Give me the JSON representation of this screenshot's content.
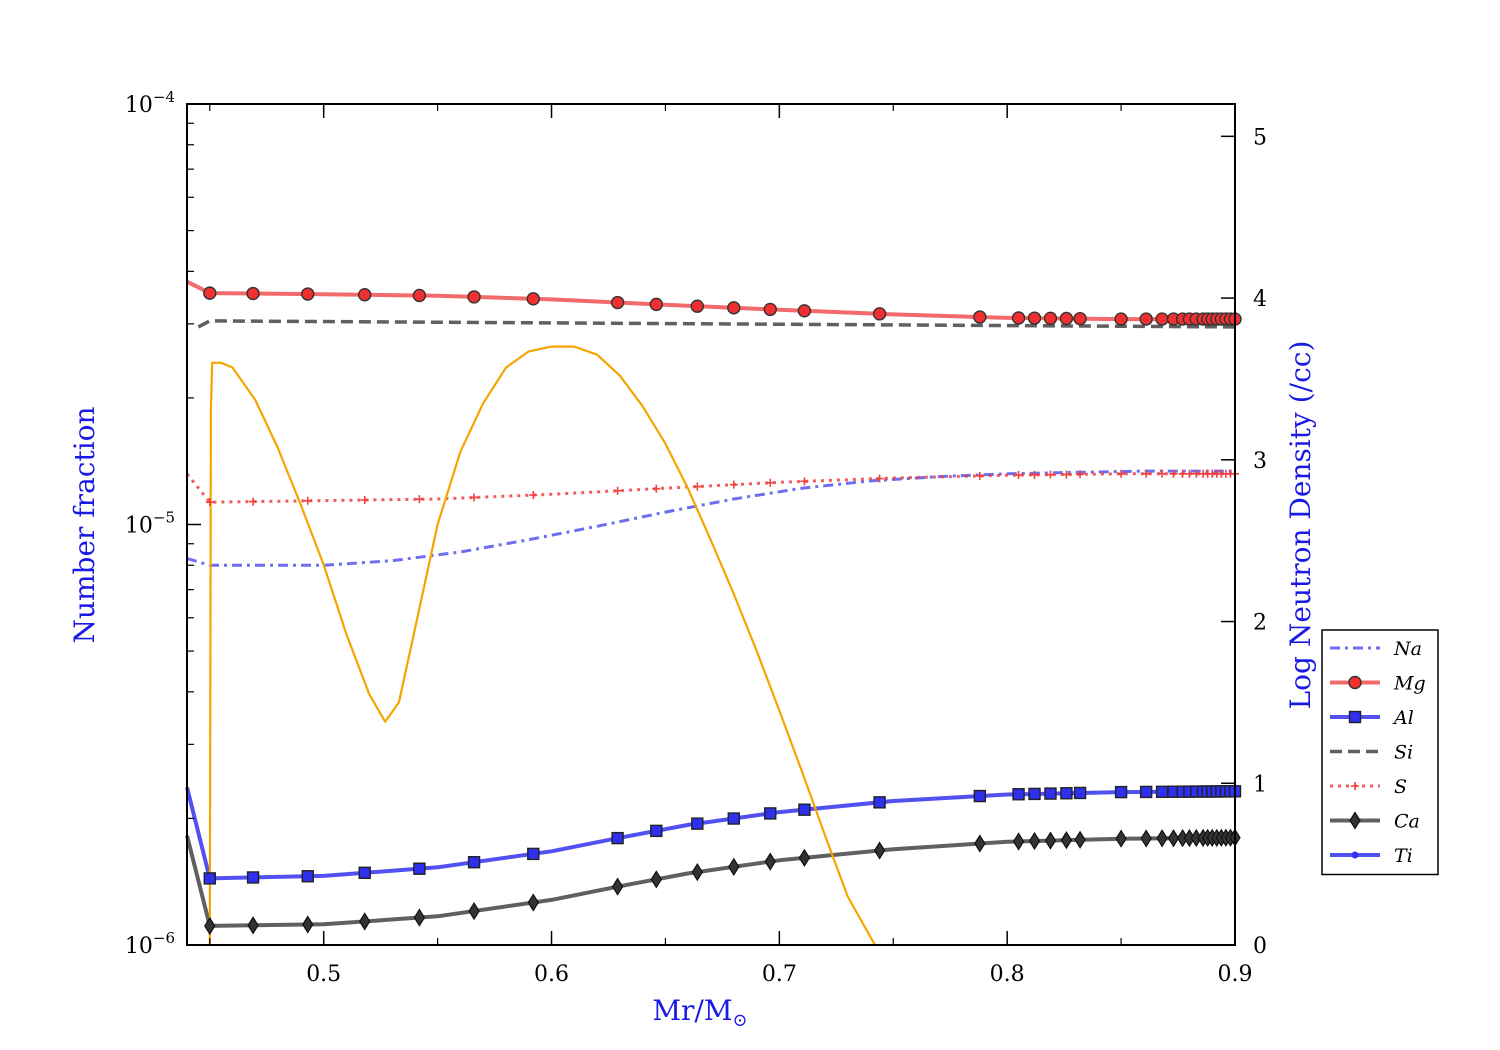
{
  "chart_data": {
    "type": "line",
    "xlabel": "Mr/M",
    "xlabel_sub": "⊙",
    "ylabel_left": "Number fraction",
    "ylabel_right": "Log Neutron Density (/cc)",
    "xlim": [
      0.44,
      0.9
    ],
    "ylim_left": [
      1e-06,
      0.0001
    ],
    "yscale_left": "log",
    "ylim_right": [
      0,
      5.2
    ],
    "x_ticks": [
      0.5,
      0.6,
      0.7,
      0.8,
      0.9
    ],
    "x_tick_labels": [
      "0.5",
      "0.6",
      "0.7",
      "0.8",
      "0.9"
    ],
    "left_tick_labels": [
      {
        "exp": -4,
        "base": "10",
        "sup": "−4"
      },
      {
        "exp": -5,
        "base": "10",
        "sup": "−5"
      },
      {
        "exp": -6,
        "base": "10",
        "sup": "−6"
      }
    ],
    "right_ticks": [
      0,
      1,
      2,
      3,
      4,
      5
    ],
    "right_tick_labels": [
      "0",
      "1",
      "2",
      "3",
      "4",
      "5"
    ],
    "legend_position": "right",
    "marker_x": [
      0.45,
      0.469,
      0.493,
      0.518,
      0.542,
      0.566,
      0.592,
      0.629,
      0.646,
      0.664,
      0.68,
      0.696,
      0.711,
      0.744,
      0.788,
      0.805,
      0.812,
      0.819,
      0.826,
      0.832,
      0.85,
      0.861,
      0.868,
      0.873,
      0.877,
      0.88,
      0.883,
      0.886,
      0.888,
      0.89,
      0.892,
      0.894,
      0.896,
      0.898,
      0.9
    ],
    "series": [
      {
        "name": "Na",
        "axis": "left",
        "color": "#5555ee",
        "style": "dashdot",
        "marker": "none",
        "x": [
          0.44,
          0.45,
          0.47,
          0.5,
          0.53,
          0.56,
          0.59,
          0.62,
          0.65,
          0.68,
          0.71,
          0.74,
          0.77,
          0.8,
          0.83,
          0.86,
          0.9
        ],
        "values": [
          8.3e-06,
          8e-06,
          8e-06,
          8e-06,
          8.2e-06,
          8.6e-06,
          9.2e-06,
          9.9e-06,
          1.07e-05,
          1.15e-05,
          1.22e-05,
          1.27e-05,
          1.3e-05,
          1.32e-05,
          1.33e-05,
          1.34e-05,
          1.34e-05
        ]
      },
      {
        "name": "Mg",
        "axis": "left",
        "color": "#f05050",
        "style": "solid",
        "marker": "circle",
        "x": [
          0.44,
          0.45,
          0.5,
          0.55,
          0.6,
          0.65,
          0.7,
          0.75,
          0.8,
          0.85,
          0.9
        ],
        "values": [
          3.78e-05,
          3.55e-05,
          3.53e-05,
          3.5e-05,
          3.43e-05,
          3.33e-05,
          3.24e-05,
          3.16e-05,
          3.1e-05,
          3.08e-05,
          3.08e-05
        ]
      },
      {
        "name": "Al",
        "axis": "left",
        "color": "#3333ee",
        "style": "solid",
        "marker": "square",
        "x": [
          0.44,
          0.45,
          0.5,
          0.55,
          0.6,
          0.63,
          0.66,
          0.7,
          0.75,
          0.8,
          0.85,
          0.9
        ],
        "values": [
          2.37e-06,
          1.44e-06,
          1.46e-06,
          1.53e-06,
          1.67e-06,
          1.8e-06,
          1.93e-06,
          2.07e-06,
          2.2e-06,
          2.28e-06,
          2.31e-06,
          2.32e-06
        ]
      },
      {
        "name": "Si",
        "axis": "left",
        "color": "#444444",
        "style": "dashed",
        "marker": "none",
        "x": [
          0.445,
          0.45,
          0.9
        ],
        "values": [
          2.95e-05,
          3.05e-05,
          2.95e-05
        ]
      },
      {
        "name": "S",
        "axis": "left",
        "color": "#f04040",
        "style": "dotted",
        "marker": "plus",
        "x": [
          0.44,
          0.45,
          0.5,
          0.55,
          0.6,
          0.65,
          0.7,
          0.75,
          0.8,
          0.85,
          0.9
        ],
        "values": [
          1.32e-05,
          1.13e-05,
          1.14e-05,
          1.15e-05,
          1.18e-05,
          1.22e-05,
          1.26e-05,
          1.29e-05,
          1.31e-05,
          1.32e-05,
          1.32e-05
        ]
      },
      {
        "name": "Ca",
        "axis": "left",
        "color": "#444444",
        "style": "solid",
        "marker": "diamond",
        "x": [
          0.44,
          0.45,
          0.5,
          0.55,
          0.6,
          0.63,
          0.66,
          0.7,
          0.75,
          0.8,
          0.85,
          0.9
        ],
        "values": [
          1.82e-06,
          1.11e-06,
          1.12e-06,
          1.17e-06,
          1.28e-06,
          1.38e-06,
          1.48e-06,
          1.59e-06,
          1.69e-06,
          1.76e-06,
          1.79e-06,
          1.8e-06
        ]
      },
      {
        "name": "Ti",
        "axis": "left",
        "color": "#3333ee",
        "style": "solid",
        "marker": "dot",
        "x": [],
        "values": []
      },
      {
        "name": "",
        "axis": "right",
        "color": "#f5a500",
        "style": "solid",
        "marker": "none",
        "x": [
          0.45,
          0.4505,
          0.451,
          0.455,
          0.46,
          0.47,
          0.48,
          0.49,
          0.5,
          0.51,
          0.52,
          0.527,
          0.533,
          0.54,
          0.55,
          0.56,
          0.57,
          0.58,
          0.59,
          0.6,
          0.61,
          0.62,
          0.63,
          0.64,
          0.65,
          0.66,
          0.67,
          0.68,
          0.69,
          0.7,
          0.71,
          0.72,
          0.73,
          0.742
        ],
        "values": [
          0,
          3.3,
          3.6,
          3.6,
          3.57,
          3.37,
          3.07,
          2.72,
          2.35,
          1.92,
          1.55,
          1.38,
          1.5,
          1.95,
          2.6,
          3.05,
          3.35,
          3.57,
          3.67,
          3.7,
          3.7,
          3.65,
          3.52,
          3.33,
          3.1,
          2.82,
          2.5,
          2.17,
          1.82,
          1.45,
          1.07,
          0.68,
          0.3,
          0
        ]
      }
    ]
  }
}
